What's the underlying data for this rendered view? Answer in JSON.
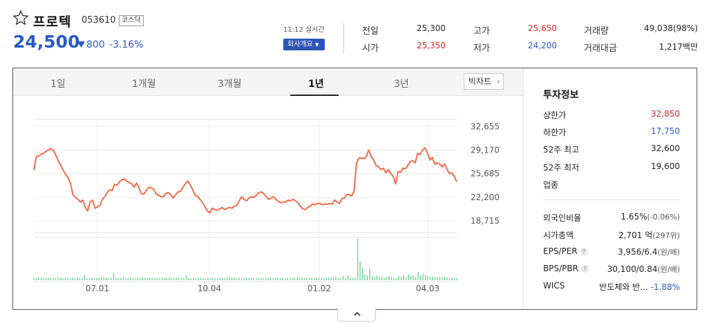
{
  "stock": {
    "name": "프로텍",
    "code": "053610",
    "market": "코스닥",
    "price": "24,500",
    "change": "800",
    "change_pct": "-3.16%",
    "time": "11:12 실시간",
    "company_button": "회사개요"
  },
  "stats": [
    {
      "label": "전일",
      "value": "25,300",
      "tone": "dark"
    },
    {
      "label": "시가",
      "value": "25,350",
      "tone": "red"
    },
    {
      "label": "고가",
      "value": "25,650",
      "tone": "red"
    },
    {
      "label": "저가",
      "value": "24,200",
      "tone": "blue"
    },
    {
      "label": "거래량",
      "value": "49,038(98%)",
      "tone": "dark"
    },
    {
      "label": "거래대금",
      "value": "1,217백만",
      "tone": "dark"
    }
  ],
  "tabs": [
    "1일",
    "1개월",
    "3개월",
    "1년",
    "3년"
  ],
  "active_tab": "1년",
  "big_chart_label": "빅차트",
  "side": {
    "title": "투자정보",
    "rows": [
      {
        "label": "상한가",
        "value": "32,850",
        "tone": "red"
      },
      {
        "label": "하한가",
        "value": "17,750",
        "tone": "blue"
      },
      {
        "label": "52주 최고",
        "value": "32,600",
        "tone": "dark"
      },
      {
        "label": "52주 최저",
        "value": "19,600",
        "tone": "dark"
      },
      {
        "label": "업종",
        "value": "",
        "tone": "dark"
      }
    ],
    "rows2": [
      {
        "label": "외국인비율",
        "value": "1.65%",
        "extra": "(-0.06%)",
        "help": false
      },
      {
        "label": "시가총액",
        "value": "2,701 억",
        "extra": "(297위)",
        "help": false
      },
      {
        "label": "EPS/PER",
        "value": "3,956/6.4",
        "extra": "(원/배)",
        "help": true
      },
      {
        "label": "BPS/PBR",
        "value": "30,100/0.84",
        "extra": "(원/배)",
        "help": true
      },
      {
        "label": "WICS",
        "value": "반도체와 반...",
        "extra": "-1.88%",
        "help": false
      }
    ]
  },
  "chart_data": {
    "type": "line",
    "title": "",
    "xlabel": "",
    "ylabel": "",
    "yticks": [
      "32,655",
      "29,170",
      "25,685",
      "22,200",
      "18,715"
    ],
    "xticks": [
      "07.01",
      "10.04",
      "01.02",
      "04.03"
    ],
    "ylim": [
      17000,
      33500
    ],
    "series": [
      {
        "color": "#f26b4a",
        "values": [
          26200,
          28200,
          28300,
          28600,
          28700,
          29000,
          29200,
          29400,
          29100,
          28400,
          27600,
          26900,
          26200,
          25600,
          25100,
          24200,
          22600,
          22200,
          21900,
          21500,
          21800,
          20800,
          20200,
          21500,
          21800,
          20600,
          20800,
          21000,
          21900,
          22300,
          22900,
          23300,
          23200,
          24100,
          24000,
          24500,
          24800,
          24900,
          24600,
          24400,
          24200,
          23700,
          24300,
          23600,
          22700,
          22700,
          23200,
          23700,
          23600,
          23400,
          22700,
          22500,
          22300,
          22300,
          22800,
          22900,
          22600,
          22100,
          22600,
          23000,
          23100,
          23700,
          24200,
          24600,
          24000,
          23300,
          22500,
          22300,
          21900,
          21400,
          20800,
          20200,
          19900,
          20600,
          20400,
          20300,
          20500,
          20700,
          20400,
          20600,
          20700,
          20600,
          20900,
          21000,
          21700,
          22300,
          21900,
          21700,
          22100,
          22300,
          22200,
          22500,
          22900,
          23000,
          22800,
          22300,
          21900,
          22100,
          22300,
          21900,
          21600,
          21400,
          21500,
          21500,
          21800,
          21700,
          21900,
          21700,
          21400,
          20900,
          20500,
          20400,
          20700,
          20900,
          21200,
          21100,
          21300,
          21300,
          21100,
          21200,
          21200,
          21300,
          21200,
          21800,
          21500,
          21300,
          22000,
          22100,
          22600,
          22600,
          22400,
          23100,
          27300,
          28000,
          28000,
          27900,
          28200,
          29200,
          28200,
          27700,
          26900,
          26700,
          26300,
          26500,
          25800,
          26300,
          25700,
          25300,
          24200,
          26000,
          25900,
          26500,
          26400,
          26900,
          27500,
          27600,
          27300,
          28700,
          28500,
          29200,
          29500,
          28800,
          27700,
          28100,
          27100,
          27300,
          27100,
          26700,
          27100,
          26400,
          25700,
          25800,
          25300,
          24500
        ]
      }
    ],
    "volume": [
      0.05,
      0.06,
      0.05,
      0.07,
      0.05,
      0.06,
      0.05,
      0.06,
      0.05,
      0.05,
      0.06,
      0.05,
      0.05,
      0.06,
      0.05,
      0.05,
      0.06,
      0.05,
      0.07,
      0.06,
      0.05,
      0.13,
      0.05,
      0.05,
      0.06,
      0.05,
      0.05,
      0.06,
      0.06,
      0.07,
      0.05,
      0.06,
      0.05,
      0.18,
      0.05,
      0.06,
      0.05,
      0.07,
      0.05,
      0.06,
      0.06,
      0.05,
      0.05,
      0.06,
      0.05,
      0.08,
      0.05,
      0.05,
      0.06,
      0.05,
      0.05,
      0.06,
      0.05,
      0.06,
      0.05,
      0.05,
      0.06,
      0.05,
      0.05,
      0.06,
      0.05,
      0.06,
      0.05,
      0.12,
      0.05,
      0.05,
      0.06,
      0.05,
      0.06,
      0.05,
      0.05,
      0.04,
      0.06,
      0.05,
      0.06,
      0.05,
      0.05,
      0.06,
      0.05,
      0.05,
      0.06,
      0.05,
      0.05,
      0.06,
      0.05,
      0.06,
      0.05,
      0.05,
      0.06,
      0.05,
      0.05,
      0.06,
      0.05,
      0.05,
      0.06,
      0.05,
      0.05,
      0.06,
      0.05,
      0.05,
      0.06,
      0.05,
      0.05,
      0.06,
      0.05,
      0.06,
      0.05,
      0.05,
      0.06,
      0.05,
      0.05,
      0.06,
      0.05,
      0.05,
      0.06,
      0.05,
      0.05,
      0.06,
      0.05,
      0.05,
      0.06,
      0.05,
      0.06,
      0.07,
      0.05,
      0.08,
      0.06,
      0.05,
      0.1,
      0.05,
      0.12,
      0.06,
      0.05,
      0.07,
      1.0,
      0.45,
      0.3,
      0.15,
      0.12,
      0.28,
      0.1,
      0.08,
      0.12,
      0.07,
      0.08,
      0.06,
      0.07,
      0.1,
      0.08,
      0.06,
      0.05,
      0.1,
      0.09,
      0.12,
      0.08,
      0.15,
      0.1,
      0.12,
      0.08,
      0.2,
      0.12,
      0.15,
      0.12,
      0.1,
      0.08,
      0.09,
      0.08,
      0.07,
      0.08,
      0.06,
      0.09,
      0.07,
      0.06,
      0.06,
      0.05,
      0.05
    ]
  }
}
